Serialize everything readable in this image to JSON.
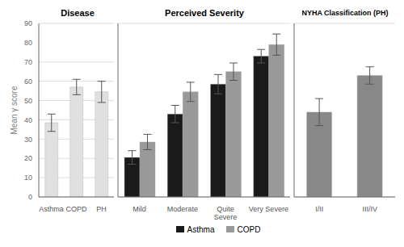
{
  "chart_data": [
    {
      "type": "bar",
      "title": "Disease",
      "y_label": "Mean γ score",
      "categories": [
        "Asthma",
        "COPD",
        "PH"
      ],
      "values": [
        38.5,
        57.0,
        54.5
      ],
      "errors": [
        4.5,
        4.0,
        5.5
      ],
      "color": "#e0e0e0",
      "ylim": [
        0,
        90
      ],
      "yticks": [
        0,
        10,
        20,
        30,
        40,
        50,
        60,
        70,
        80,
        90
      ],
      "grid": true
    },
    {
      "type": "bar",
      "title": "Perceived Severity",
      "categories": [
        "Mild",
        "Moderate",
        "Quite\nSevere",
        "Very Severe"
      ],
      "series": [
        {
          "name": "Asthma",
          "color": "#1a1a1a",
          "values": [
            20.5,
            43.0,
            58.5,
            73.0
          ],
          "errors": [
            3.5,
            4.5,
            5.0,
            3.5
          ]
        },
        {
          "name": "COPD",
          "color": "#999999",
          "values": [
            28.5,
            54.5,
            65.0,
            79.0
          ],
          "errors": [
            4.0,
            5.0,
            4.5,
            5.5
          ]
        }
      ],
      "ylim": [
        0,
        90
      ],
      "yticks": [
        0,
        10,
        20,
        30,
        40,
        50,
        60,
        70,
        80,
        90
      ],
      "grid": true,
      "tick_labels": "x",
      "legend": "bottom"
    },
    {
      "type": "bar",
      "title": "NYHA Classification (PH)",
      "categories": [
        "I/II",
        "III/IV"
      ],
      "values": [
        44.0,
        63.0
      ],
      "errors": [
        7.0,
        4.5
      ],
      "color": "#888888",
      "ylim": [
        0,
        90
      ],
      "yticks": [
        0,
        10,
        20,
        30,
        40,
        50,
        60,
        70,
        80,
        90
      ],
      "grid": true,
      "tick_labels": "x"
    }
  ]
}
